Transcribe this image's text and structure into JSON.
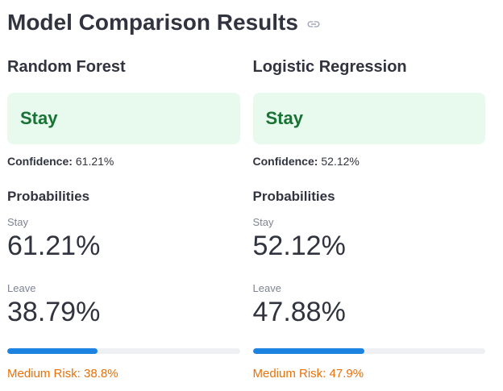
{
  "colors": {
    "text": "#31333F",
    "success_bg": "#e8f9ee",
    "success_text": "#177233",
    "metric_label": "#7f8494",
    "progress_fill": "#1c83e1",
    "progress_track": "#eef0f4",
    "risk_text": "#e8710a",
    "link_icon": "#a3a8b8"
  },
  "header": {
    "title": "Model Comparison Results"
  },
  "columns": [
    {
      "model_name": "Random Forest",
      "prediction": "Stay",
      "confidence_label": "Confidence:",
      "confidence_value": "61.21%",
      "probabilities_heading": "Probabilities",
      "stay_metric": {
        "label": "Stay",
        "value": "61.21%"
      },
      "leave_metric": {
        "label": "Leave",
        "value": "38.79%"
      },
      "progress_percent": 38.8,
      "risk_text": "Medium Risk: 38.8%"
    },
    {
      "model_name": "Logistic Regression",
      "prediction": "Stay",
      "confidence_label": "Confidence:",
      "confidence_value": "52.12%",
      "probabilities_heading": "Probabilities",
      "stay_metric": {
        "label": "Stay",
        "value": "52.12%"
      },
      "leave_metric": {
        "label": "Leave",
        "value": "47.88%"
      },
      "progress_percent": 47.9,
      "risk_text": "Medium Risk: 47.9%"
    }
  ]
}
